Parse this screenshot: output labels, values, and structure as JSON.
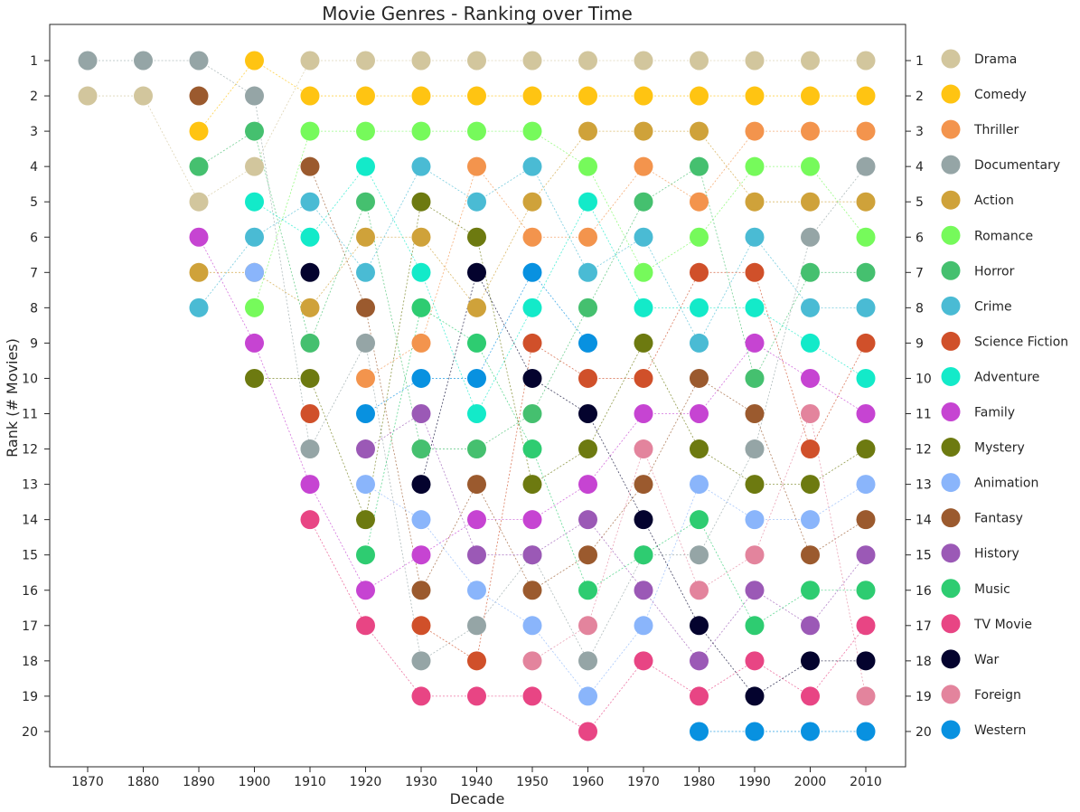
{
  "chart_data": {
    "type": "scatter",
    "title": "Movie Genres - Ranking over Time",
    "xlabel": "Decade",
    "ylabel": "Rank (# Movies)",
    "x": [
      1870,
      1880,
      1890,
      1900,
      1910,
      1920,
      1930,
      1940,
      1950,
      1960,
      1970,
      1980,
      1990,
      2000,
      2010
    ],
    "y_ticks": [
      1,
      2,
      3,
      4,
      5,
      6,
      7,
      8,
      9,
      10,
      11,
      12,
      13,
      14,
      15,
      16,
      17,
      18,
      19,
      20
    ],
    "ylim": [
      21,
      0
    ],
    "y_inverted": true,
    "legend_placement": "right",
    "series": [
      {
        "name": "Drama",
        "color": "#d2c69d",
        "ranks": [
          2,
          2,
          5,
          4,
          1,
          1,
          1,
          1,
          1,
          1,
          1,
          1,
          1,
          1,
          1
        ]
      },
      {
        "name": "Comedy",
        "color": "#ffc412",
        "ranks": [
          null,
          null,
          3,
          1,
          2,
          2,
          2,
          2,
          2,
          2,
          2,
          2,
          2,
          2,
          2
        ]
      },
      {
        "name": "Thriller",
        "color": "#f3944d",
        "ranks": [
          null,
          null,
          null,
          null,
          null,
          10,
          9,
          4,
          6,
          6,
          4,
          5,
          3,
          3,
          3
        ]
      },
      {
        "name": "Documentary",
        "color": "#95a5a6",
        "ranks": [
          1,
          1,
          1,
          2,
          12,
          9,
          18,
          17,
          15,
          18,
          15,
          15,
          12,
          6,
          4
        ]
      },
      {
        "name": "Action",
        "color": "#cfa23a",
        "ranks": [
          null,
          null,
          7,
          7,
          8,
          6,
          6,
          8,
          5,
          3,
          3,
          3,
          5,
          5,
          5
        ]
      },
      {
        "name": "Romance",
        "color": "#76fa5b",
        "ranks": [
          null,
          null,
          null,
          8,
          3,
          3,
          3,
          3,
          3,
          4,
          7,
          6,
          4,
          4,
          6
        ]
      },
      {
        "name": "Horror",
        "color": "#45c06f",
        "ranks": [
          null,
          null,
          4,
          3,
          9,
          5,
          12,
          12,
          11,
          8,
          5,
          4,
          10,
          7,
          7
        ]
      },
      {
        "name": "Crime",
        "color": "#4abbd4",
        "ranks": [
          null,
          null,
          8,
          6,
          5,
          7,
          4,
          5,
          4,
          7,
          6,
          9,
          6,
          8,
          8
        ]
      },
      {
        "name": "Science Fiction",
        "color": "#d0502a",
        "ranks": [
          null,
          null,
          null,
          null,
          11,
          null,
          17,
          18,
          9,
          10,
          10,
          7,
          7,
          12,
          9
        ]
      },
      {
        "name": "Adventure",
        "color": "#13eac9",
        "ranks": [
          null,
          null,
          null,
          5,
          6,
          4,
          7,
          11,
          8,
          5,
          8,
          8,
          8,
          9,
          10
        ]
      },
      {
        "name": "Family",
        "color": "#c644d2",
        "ranks": [
          null,
          null,
          6,
          9,
          13,
          16,
          15,
          14,
          14,
          13,
          11,
          11,
          9,
          10,
          11
        ]
      },
      {
        "name": "Mystery",
        "color": "#6d7a10",
        "ranks": [
          null,
          null,
          null,
          10,
          10,
          14,
          5,
          6,
          13,
          12,
          9,
          12,
          13,
          13,
          12
        ]
      },
      {
        "name": "Animation",
        "color": "#8ab5fb",
        "ranks": [
          null,
          null,
          null,
          7,
          null,
          13,
          14,
          16,
          17,
          19,
          17,
          13,
          14,
          14,
          13
        ]
      },
      {
        "name": "Fantasy",
        "color": "#9b5a2e",
        "ranks": [
          null,
          null,
          2,
          null,
          4,
          8,
          16,
          13,
          16,
          15,
          13,
          10,
          11,
          15,
          14
        ]
      },
      {
        "name": "History",
        "color": "#9b59b6",
        "ranks": [
          null,
          null,
          null,
          null,
          null,
          12,
          11,
          15,
          15,
          14,
          16,
          18,
          16,
          17,
          15
        ]
      },
      {
        "name": "Music",
        "color": "#2ecc71",
        "ranks": [
          null,
          null,
          null,
          null,
          null,
          15,
          8,
          9,
          12,
          16,
          15,
          14,
          17,
          16,
          16
        ]
      },
      {
        "name": "TV Movie",
        "color": "#e84584",
        "ranks": [
          null,
          null,
          null,
          null,
          14,
          17,
          19,
          19,
          19,
          20,
          18,
          19,
          18,
          19,
          17
        ]
      },
      {
        "name": "War",
        "color": "#04032e",
        "ranks": [
          null,
          null,
          null,
          null,
          7,
          null,
          13,
          7,
          10,
          11,
          14,
          17,
          19,
          18,
          18
        ]
      },
      {
        "name": "Foreign",
        "color": "#e3849d",
        "ranks": [
          null,
          null,
          null,
          null,
          null,
          null,
          null,
          null,
          18,
          17,
          12,
          16,
          15,
          11,
          19
        ]
      },
      {
        "name": "Western",
        "color": "#0891e0",
        "ranks": [
          null,
          null,
          null,
          null,
          null,
          11,
          10,
          10,
          7,
          9,
          null,
          20,
          20,
          20,
          20
        ]
      }
    ]
  }
}
